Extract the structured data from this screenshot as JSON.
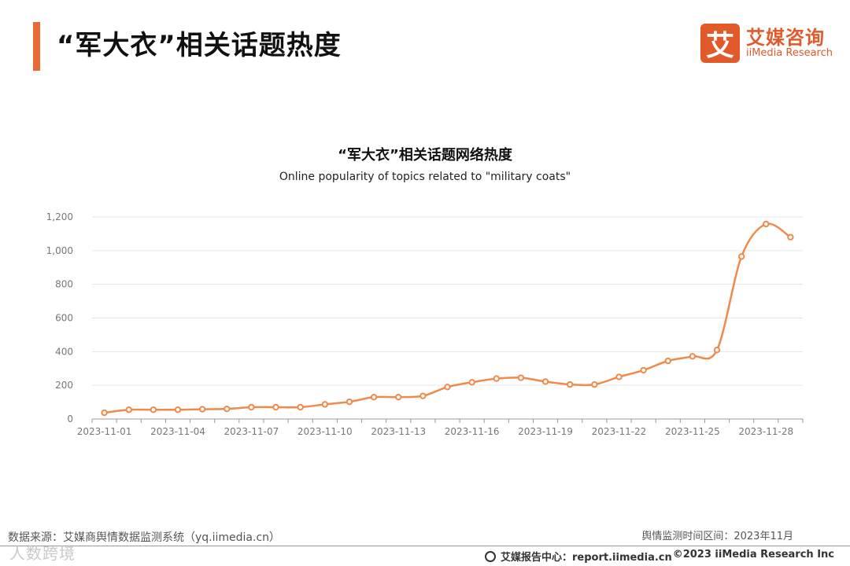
{
  "header": {
    "title": "“军大衣”相关话题热度",
    "logo_mark": "艾",
    "logo_cn": "艾媒咨询",
    "logo_en": "iiMedia Research"
  },
  "chart_data": {
    "type": "line",
    "title": "“军大衣”相关话题网络热度",
    "subtitle": "Online popularity of topics related to \"military coats\"",
    "xlabel": "",
    "ylabel": "",
    "ylim": [
      0,
      1200
    ],
    "yticks": [
      0,
      200,
      400,
      600,
      800,
      1000,
      1200
    ],
    "ytick_labels": [
      "0",
      "200",
      "400",
      "600",
      "800",
      "1,000",
      "1,200"
    ],
    "xtick_labels": [
      "2023-11-01",
      "2023-11-04",
      "2023-11-07",
      "2023-11-10",
      "2023-11-13",
      "2023-11-16",
      "2023-11-19",
      "2023-11-22",
      "2023-11-25",
      "2023-11-28"
    ],
    "xtick_every": 3,
    "grid": true,
    "color": "#f08a4b",
    "x": [
      "2023-11-01",
      "2023-11-02",
      "2023-11-03",
      "2023-11-04",
      "2023-11-05",
      "2023-11-06",
      "2023-11-07",
      "2023-11-08",
      "2023-11-09",
      "2023-11-10",
      "2023-11-11",
      "2023-11-12",
      "2023-11-13",
      "2023-11-14",
      "2023-11-15",
      "2023-11-16",
      "2023-11-17",
      "2023-11-18",
      "2023-11-19",
      "2023-11-20",
      "2023-11-21",
      "2023-11-22",
      "2023-11-23",
      "2023-11-24",
      "2023-11-25",
      "2023-11-26",
      "2023-11-27",
      "2023-11-28",
      "2023-11-29"
    ],
    "series": [
      {
        "values": [
          37,
          55,
          55,
          55,
          58,
          60,
          70,
          70,
          70,
          87,
          102,
          130,
          130,
          137,
          190,
          218,
          240,
          245,
          222,
          205,
          205,
          250,
          290,
          345,
          372,
          410,
          965,
          1158,
          1080
        ]
      }
    ]
  },
  "footer": {
    "source": "数据来源：艾媒商舆情数据监测系统（yq.iimedia.cn）",
    "period": "舆情监测时间区间：2023年11月",
    "watermark": "人数跨境",
    "report_center": "艾媒报告中心：report.iimedia.cn",
    "copyright": "©2023  iiMedia Research  Inc"
  }
}
